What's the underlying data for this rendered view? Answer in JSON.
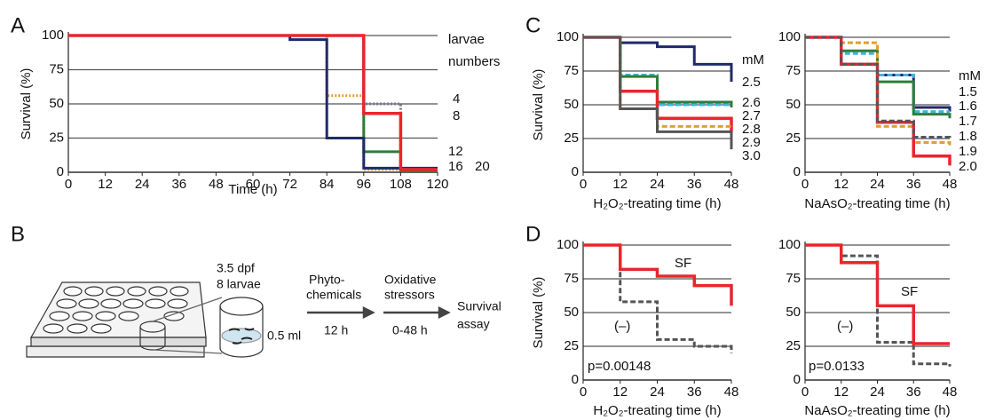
{
  "panels": [
    "A",
    "B",
    "C",
    "D"
  ],
  "diagram": {
    "stage": [
      "3.5 dpf",
      "8 larvae"
    ],
    "volume": "0.5 ml",
    "step1": [
      "Phyto-",
      "chemicals"
    ],
    "step1_time": "12 h",
    "step2": [
      "Oxidative",
      "stressors"
    ],
    "step2_time": "0-48 h",
    "result": [
      "Survival",
      "assay"
    ]
  },
  "chart_data": [
    {
      "type": "step",
      "xlabel": "Time (h)",
      "ylabel": "Survival (%)",
      "legend_title": [
        "larvae",
        "numbers"
      ],
      "x": [
        0,
        12,
        24,
        36,
        48,
        60,
        72,
        84,
        96,
        108,
        120
      ],
      "xlim": [
        0,
        120
      ],
      "xticks": [
        0,
        12,
        24,
        36,
        48,
        60,
        72,
        84,
        96,
        108,
        120
      ],
      "ylim": [
        0,
        100
      ],
      "yticks": [
        0,
        25,
        50,
        75,
        100
      ],
      "grid": true,
      "series": [
        {
          "name": "4",
          "color": "#7a7a8a",
          "linestyle": "dotted",
          "values": [
            100,
            100,
            100,
            100,
            100,
            100,
            100,
            100,
            50,
            1,
            1
          ]
        },
        {
          "name": "16",
          "color": "#e0a030",
          "linestyle": "dotted",
          "values": [
            100,
            100,
            100,
            100,
            100,
            100,
            100,
            56,
            2,
            2,
            2
          ]
        },
        {
          "name": "12",
          "color": "#2e7d3a",
          "linestyle": "solid",
          "values": [
            100,
            100,
            100,
            100,
            100,
            100,
            100,
            100,
            15,
            1,
            1
          ]
        },
        {
          "name": "20",
          "color": "#1f2a6b",
          "linestyle": "solid",
          "values": [
            100,
            100,
            100,
            100,
            100,
            100,
            97,
            25,
            3,
            3,
            3
          ]
        },
        {
          "name": "8",
          "color": "#e8262c",
          "linestyle": "solid",
          "values": [
            100,
            100,
            100,
            100,
            100,
            100,
            100,
            100,
            43,
            2,
            2
          ]
        }
      ]
    },
    {
      "type": "step",
      "xlabel": "H₂O₂-treating time (h)",
      "ylabel": "Survival (%)",
      "legend_title": [
        "mM"
      ],
      "x": [
        0,
        12,
        24,
        36,
        48
      ],
      "xlim": [
        0,
        48
      ],
      "xticks": [
        0,
        12,
        24,
        36,
        48
      ],
      "ylim": [
        0,
        100
      ],
      "yticks": [
        0,
        25,
        50,
        75,
        100
      ],
      "grid": true,
      "series": [
        {
          "name": "2.5",
          "color": "#1f2a6b",
          "linestyle": "solid",
          "values": [
            100,
            96,
            93,
            80,
            67
          ]
        },
        {
          "name": "2.6",
          "color": "#3fb4e0",
          "linestyle": "dashed",
          "values": [
            100,
            72,
            50,
            50,
            50
          ]
        },
        {
          "name": "2.7",
          "color": "#2e7d3a",
          "linestyle": "solid",
          "values": [
            100,
            71,
            52,
            52,
            48
          ]
        },
        {
          "name": "2.8",
          "color": "#e8262c",
          "linestyle": "solid",
          "values": [
            100,
            60,
            40,
            40,
            30
          ]
        },
        {
          "name": "2.9",
          "color": "#e0a030",
          "linestyle": "dashed",
          "values": [
            100,
            47,
            34,
            34,
            33
          ]
        },
        {
          "name": "3.0",
          "color": "#555555",
          "linestyle": "solid",
          "values": [
            100,
            47,
            30,
            30,
            17
          ]
        }
      ]
    },
    {
      "type": "step",
      "xlabel": "NaAsO₂-treating time (h)",
      "legend_title": [
        "mM"
      ],
      "x": [
        0,
        12,
        24,
        36,
        48
      ],
      "xlim": [
        0,
        48
      ],
      "xticks": [
        0,
        12,
        24,
        36,
        48
      ],
      "ylim": [
        0,
        100
      ],
      "yticks": [
        0,
        25,
        50,
        75,
        100
      ],
      "grid": true,
      "series": [
        {
          "name": "1.5",
          "color": "#1f2a6b",
          "linestyle": "solid",
          "values": [
            100,
            80,
            72,
            48,
            45
          ]
        },
        {
          "name": "1.6",
          "color": "#3fb4e0",
          "linestyle": "dashed",
          "values": [
            100,
            88,
            72,
            45,
            45
          ]
        },
        {
          "name": "1.7",
          "color": "#2e7d3a",
          "linestyle": "solid",
          "values": [
            100,
            90,
            67,
            43,
            40
          ]
        },
        {
          "name": "1.8",
          "color": "#e0a030",
          "linestyle": "dashed",
          "values": [
            100,
            96,
            34,
            22,
            20
          ]
        },
        {
          "name": "1.9",
          "color": "#e8262c",
          "linestyle": "solid",
          "values": [
            100,
            80,
            37,
            12,
            5
          ]
        },
        {
          "name": "2.0",
          "color": "#555555",
          "linestyle": "dashed",
          "values": [
            100,
            80,
            38,
            26,
            25
          ]
        }
      ]
    },
    {
      "type": "step",
      "xlabel": "H₂O₂-treating time (h)",
      "ylabel": "Survival (%)",
      "x": [
        0,
        12,
        24,
        36,
        48
      ],
      "xlim": [
        0,
        48
      ],
      "xticks": [
        0,
        12,
        24,
        36,
        48
      ],
      "ylim": [
        0,
        100
      ],
      "yticks": [
        0,
        25,
        50,
        75,
        100
      ],
      "grid": true,
      "annotations": [
        "SF",
        "(–)",
        "p=0.00148"
      ],
      "series": [
        {
          "color": "#555555",
          "linestyle": "dashed",
          "values": [
            100,
            58,
            30,
            25,
            20
          ]
        },
        {
          "color": "#e8262c",
          "linestyle": "solid",
          "values": [
            100,
            82,
            77,
            70,
            55
          ]
        }
      ]
    },
    {
      "type": "step",
      "xlabel": "NaAsO₂-treating time (h)",
      "x": [
        0,
        12,
        24,
        36,
        48
      ],
      "xlim": [
        0,
        48
      ],
      "xticks": [
        0,
        12,
        24,
        36,
        48
      ],
      "ylim": [
        0,
        100
      ],
      "yticks": [
        0,
        25,
        50,
        75,
        100
      ],
      "grid": true,
      "annotations": [
        "SF",
        "(–)",
        "p=0.0133"
      ],
      "series": [
        {
          "color": "#555555",
          "linestyle": "dashed",
          "values": [
            100,
            92,
            28,
            12,
            10
          ]
        },
        {
          "color": "#e8262c",
          "linestyle": "solid",
          "values": [
            100,
            87,
            55,
            27,
            27
          ]
        }
      ]
    }
  ]
}
